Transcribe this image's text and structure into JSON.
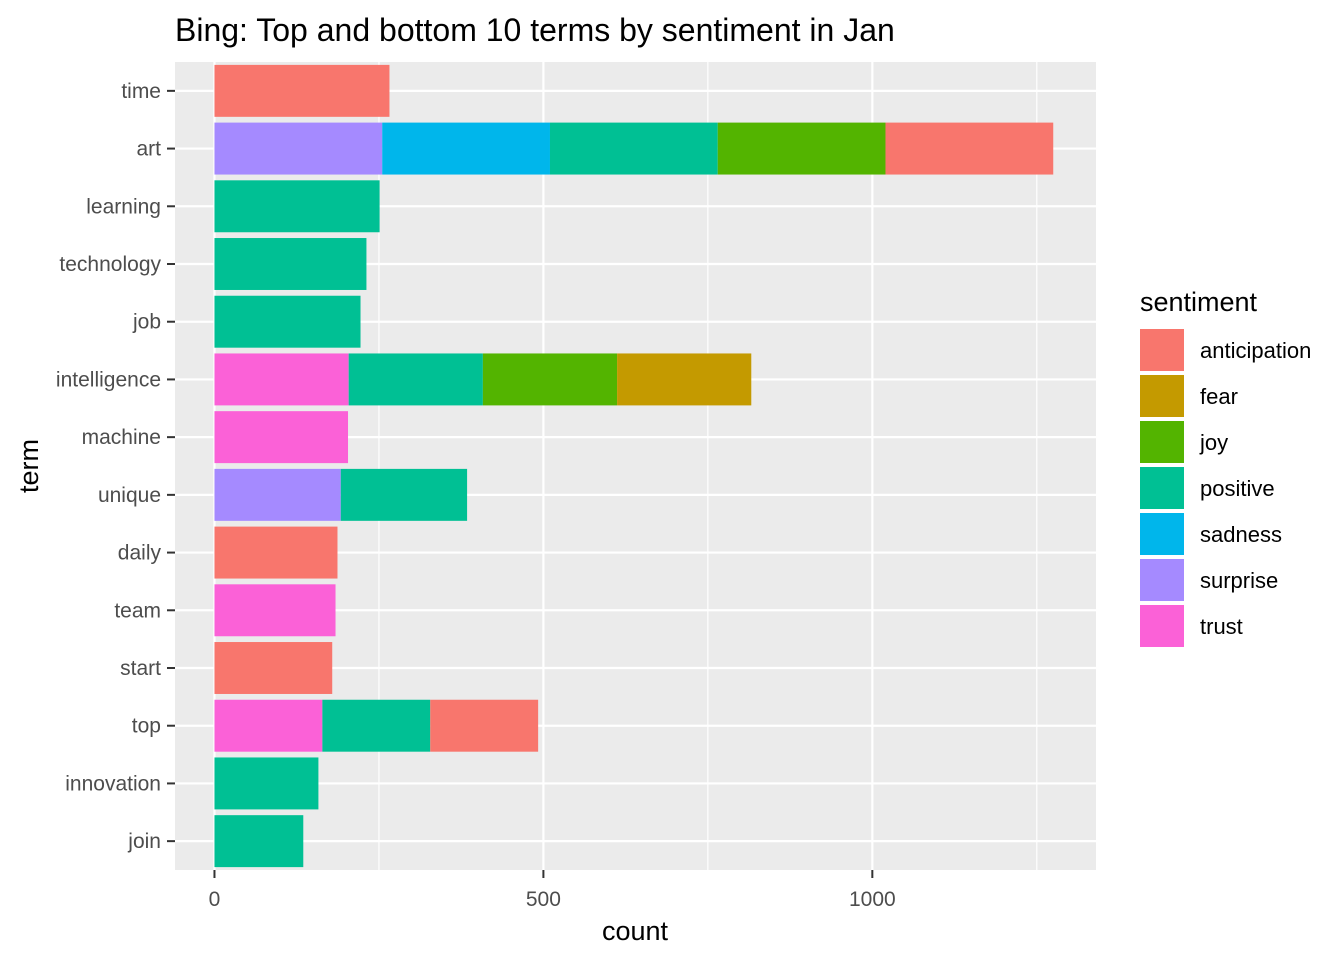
{
  "chart_data": {
    "type": "bar",
    "orientation": "horizontal",
    "stacked": true,
    "title": "Bing: Top and bottom 10 terms by sentiment in Jan",
    "xlabel": "count",
    "ylabel": "term",
    "xlim": [
      -60,
      1340
    ],
    "x_ticks": [
      0,
      500,
      1000
    ],
    "x_tick_labels": [
      "0",
      "500",
      "1000"
    ],
    "grid": true,
    "panel_background": "#EBEBEB",
    "legend": {
      "title": "sentiment",
      "placement": "right",
      "entries": [
        {
          "name": "anticipation",
          "color": "#F8766D"
        },
        {
          "name": "fear",
          "color": "#C49A00"
        },
        {
          "name": "joy",
          "color": "#53B400"
        },
        {
          "name": "positive",
          "color": "#00C094"
        },
        {
          "name": "sadness",
          "color": "#00B6EB"
        },
        {
          "name": "surprise",
          "color": "#A58AFF"
        },
        {
          "name": "trust",
          "color": "#FB61D7"
        }
      ]
    },
    "categories": [
      "time",
      "art",
      "learning",
      "technology",
      "job",
      "intelligence",
      "machine",
      "unique",
      "daily",
      "team",
      "start",
      "top",
      "innovation",
      "join"
    ],
    "bars": [
      {
        "term": "time",
        "segments": [
          {
            "sentiment": "anticipation",
            "value": 266
          }
        ]
      },
      {
        "term": "art",
        "segments": [
          {
            "sentiment": "surprise",
            "value": 255
          },
          {
            "sentiment": "sadness",
            "value": 255
          },
          {
            "sentiment": "positive",
            "value": 255
          },
          {
            "sentiment": "joy",
            "value": 255
          },
          {
            "sentiment": "anticipation",
            "value": 255
          }
        ]
      },
      {
        "term": "learning",
        "segments": [
          {
            "sentiment": "positive",
            "value": 251
          }
        ]
      },
      {
        "term": "technology",
        "segments": [
          {
            "sentiment": "positive",
            "value": 231
          }
        ]
      },
      {
        "term": "job",
        "segments": [
          {
            "sentiment": "positive",
            "value": 222
          }
        ]
      },
      {
        "term": "intelligence",
        "segments": [
          {
            "sentiment": "trust",
            "value": 204
          },
          {
            "sentiment": "positive",
            "value": 204
          },
          {
            "sentiment": "joy",
            "value": 204
          },
          {
            "sentiment": "fear",
            "value": 204
          }
        ]
      },
      {
        "term": "machine",
        "segments": [
          {
            "sentiment": "trust",
            "value": 203
          }
        ]
      },
      {
        "term": "unique",
        "segments": [
          {
            "sentiment": "surprise",
            "value": 192
          },
          {
            "sentiment": "positive",
            "value": 192
          }
        ]
      },
      {
        "term": "daily",
        "segments": [
          {
            "sentiment": "anticipation",
            "value": 187
          }
        ]
      },
      {
        "term": "team",
        "segments": [
          {
            "sentiment": "trust",
            "value": 184
          }
        ]
      },
      {
        "term": "start",
        "segments": [
          {
            "sentiment": "anticipation",
            "value": 179
          }
        ]
      },
      {
        "term": "top",
        "segments": [
          {
            "sentiment": "trust",
            "value": 164
          },
          {
            "sentiment": "positive",
            "value": 164
          },
          {
            "sentiment": "anticipation",
            "value": 164
          }
        ]
      },
      {
        "term": "innovation",
        "segments": [
          {
            "sentiment": "positive",
            "value": 158
          }
        ]
      },
      {
        "term": "join",
        "segments": [
          {
            "sentiment": "positive",
            "value": 135
          }
        ]
      }
    ]
  }
}
